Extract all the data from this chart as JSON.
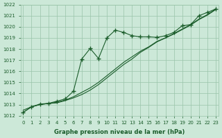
{
  "bg_color": "#cce8d8",
  "grid_color": "#99c4aa",
  "line_color": "#1a5c2a",
  "xlabel": "Graphe pression niveau de la mer (hPa)",
  "ylim_min": 1012,
  "ylim_max": 1022,
  "xlim_min": 0,
  "xlim_max": 23,
  "yticks": [
    1012,
    1013,
    1014,
    1015,
    1016,
    1017,
    1018,
    1019,
    1020,
    1021,
    1022
  ],
  "xticks": [
    0,
    1,
    2,
    3,
    4,
    5,
    6,
    7,
    8,
    9,
    10,
    11,
    12,
    13,
    14,
    15,
    16,
    17,
    18,
    19,
    20,
    21,
    22,
    23
  ],
  "s1_x": [
    0,
    1,
    2,
    3,
    4,
    5,
    6,
    7,
    8,
    9,
    10,
    11,
    12,
    13,
    14,
    15,
    16,
    17,
    18,
    19,
    20,
    21,
    22,
    23
  ],
  "s1_y": [
    1012.3,
    1012.8,
    1013.0,
    1013.1,
    1013.2,
    1013.4,
    1013.7,
    1014.1,
    1014.5,
    1015.0,
    1015.6,
    1016.2,
    1016.8,
    1017.3,
    1017.8,
    1018.2,
    1018.7,
    1019.0,
    1019.4,
    1019.8,
    1020.2,
    1020.7,
    1021.1,
    1021.6
  ],
  "s2_x": [
    0,
    1,
    2,
    3,
    4,
    5,
    6,
    7,
    8,
    9,
    10,
    11,
    12,
    13,
    14,
    15,
    16,
    17,
    18,
    19,
    20,
    21,
    22,
    23
  ],
  "s2_y": [
    1012.5,
    1012.8,
    1013.0,
    1013.1,
    1013.15,
    1013.35,
    1013.6,
    1013.9,
    1014.3,
    1014.8,
    1015.4,
    1016.0,
    1016.6,
    1017.1,
    1017.7,
    1018.15,
    1018.65,
    1019.0,
    1019.35,
    1019.75,
    1020.15,
    1020.65,
    1021.05,
    1021.55
  ],
  "s3_x": [
    0,
    1,
    2,
    3,
    4,
    5,
    6,
    7,
    8,
    9,
    10,
    11,
    12,
    13,
    14,
    15,
    16,
    17,
    18,
    19,
    20,
    21,
    22,
    23
  ],
  "s3_y": [
    1012.3,
    1012.8,
    1013.05,
    1013.1,
    1013.3,
    1013.5,
    1014.2,
    1017.1,
    1018.05,
    1017.15,
    1019.0,
    1019.7,
    1019.5,
    1019.2,
    1019.1,
    1019.1,
    1019.05,
    1019.2,
    1019.5,
    1020.1,
    1020.2,
    1021.0,
    1021.3,
    1021.6
  ]
}
